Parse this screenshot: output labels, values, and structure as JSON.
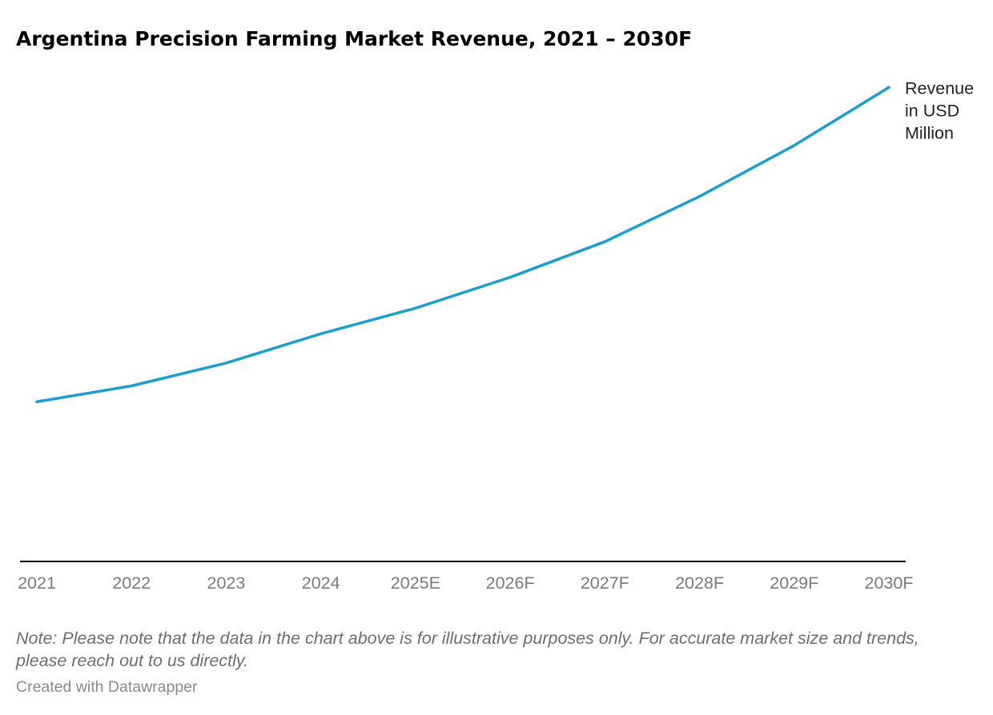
{
  "chart_data": {
    "type": "line",
    "title": "Argentina Precision Farming Market Revenue, 2021 – 2030F",
    "categories": [
      "2021",
      "2022",
      "2023",
      "2024",
      "2025E",
      "2026F",
      "2027F",
      "2028F",
      "2029F",
      "2030F"
    ],
    "series": [
      {
        "name": "Revenue in USD Million",
        "label_lines": [
          "Revenue",
          "in USD",
          "Million"
        ],
        "color": "#1c9fcc",
        "values": [
          30,
          33,
          37.3,
          42.8,
          47.6,
          53.4,
          60.1,
          68.6,
          78.2,
          89.1
        ]
      }
    ],
    "ylim": [
      0,
      95
    ],
    "y_axis_labels": false,
    "grid": false,
    "baseline_color": "#000000",
    "tick_label_color": "#7a7a7a"
  },
  "note": "Note: Please note that the data in the chart above is for illustrative purposes only. For accurate market size and trends, please reach out to us directly.",
  "credit": "Created with Datawrapper"
}
